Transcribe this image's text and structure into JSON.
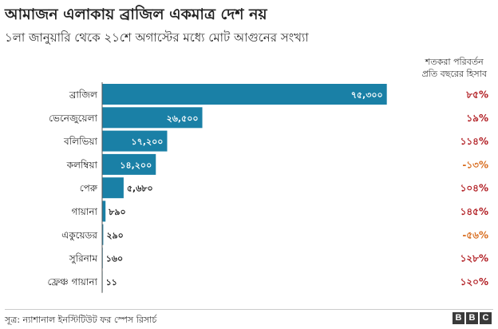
{
  "title": "আমাজন এলাকায় ব্রাজিল একমাত্র দেশ নয়",
  "subtitle": "১লা জানুয়ারি থেকে ২১শে অগাস্টের মধ্যে মোট আগুনের সংখ্যা",
  "change_header": {
    "line1": "শতকরা পরিবর্তন",
    "line2": "প্রতি বছরের হিসাব"
  },
  "source": "সূত্র: ন্যাশানাল ইনস্টিটিউট ফর স্পেস রিসার্চ",
  "logo": [
    "B",
    "B",
    "C"
  ],
  "colors": {
    "bar": "#1a80a6",
    "change_red": "#b11d22",
    "change_orange": "#d86c1e",
    "label_on_bar": "#ffffff",
    "label_off_bar": "#222222"
  },
  "chart_data": {
    "type": "bar",
    "orientation": "horizontal",
    "title": "আমাজন এলাকায় ব্রাজিল একমাত্র দেশ নয়",
    "subtitle": "১লা জানুয়ারি থেকে ২১শে অগাস্টের মধ্যে মোট আগুনের সংখ্যা",
    "xlim": [
      0,
      76000
    ],
    "grid": false,
    "categories": [
      "ব্রাজিল",
      "ভেনেজুয়েলা",
      "বলিভিয়া",
      "কলম্বিয়া",
      "পেরু",
      "গায়ানা",
      "একুয়েডর",
      "সুরিনাম",
      "ফ্রেঞ্চ গায়ানা"
    ],
    "values": [
      75300,
      26500,
      17200,
      14200,
      5680,
      890,
      290,
      160,
      11
    ],
    "value_labels": [
      "৭৫,৩০০",
      "২৬,৫০০",
      "১৭,২০০",
      "১৪,২০০",
      "৫,৬৮০",
      "৮৯০",
      "২৯০",
      "১৬০",
      "১১"
    ],
    "change_percent": [
      85,
      19,
      114,
      -13,
      104,
      145,
      -56,
      128,
      120
    ],
    "change_labels": [
      "৮৫%",
      "১৯%",
      "১১৪%",
      "-১৩%",
      "১০৪%",
      "১৪৫%",
      "-৫৬%",
      "১২৮%",
      "১২০%"
    ],
    "change_colors": [
      "#b11d22",
      "#b11d22",
      "#b11d22",
      "#d86c1e",
      "#b11d22",
      "#b11d22",
      "#d86c1e",
      "#b11d22",
      "#b11d22"
    ]
  }
}
